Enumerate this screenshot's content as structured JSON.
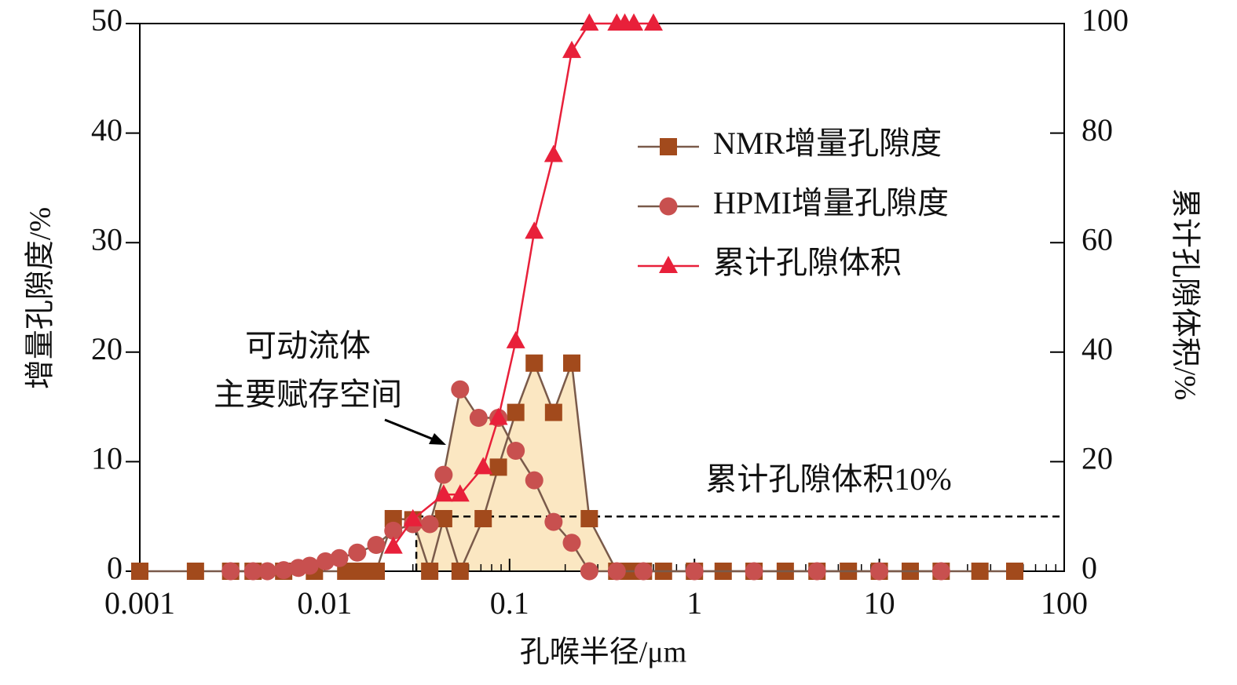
{
  "chart_data": {
    "type": "line",
    "xlabel": "孔喉半径/μm",
    "ylabel": "增量孔隙度/%",
    "y2label": "累计孔隙体积/%",
    "xscale": "log",
    "xlim": [
      0.001,
      100
    ],
    "xticks": [
      0.001,
      0.01,
      0.1,
      1,
      10,
      100
    ],
    "ylim": [
      0,
      50
    ],
    "yticks": [
      0,
      10,
      20,
      30,
      40,
      50
    ],
    "y2lim": [
      0,
      100
    ],
    "y2ticks": [
      0,
      20,
      40,
      60,
      80,
      100
    ],
    "legend_position": "upper right",
    "series": [
      {
        "name": "NMR增量孔隙度",
        "color": "#a24a1c",
        "marker": "square",
        "x": [
          0.001,
          0.002,
          0.0031,
          0.0041,
          0.006,
          0.0088,
          0.013,
          0.016,
          0.019,
          0.0235,
          0.03,
          0.037,
          0.044,
          0.054,
          0.072,
          0.087,
          0.108,
          0.136,
          0.173,
          0.217,
          0.27,
          0.38,
          0.44,
          0.53,
          0.68,
          1,
          1.43,
          2.1,
          3.1,
          4.6,
          6.8,
          10,
          14.7,
          21.6,
          35,
          54
        ],
        "values": [
          0,
          0,
          0,
          0,
          0,
          0,
          0,
          0,
          0,
          4.8,
          4.7,
          0,
          4.8,
          0,
          4.8,
          9.5,
          14.5,
          19,
          14.5,
          19,
          4.8,
          0,
          0,
          0,
          0,
          0,
          0,
          0,
          0,
          0,
          0,
          0,
          0,
          0,
          0,
          0
        ]
      },
      {
        "name": "HPMI增量孔隙度",
        "color": "#c8504f",
        "marker": "circle",
        "x": [
          0.0031,
          0.0041,
          0.0049,
          0.006,
          0.0072,
          0.0083,
          0.0101,
          0.012,
          0.015,
          0.019,
          0.0235,
          0.03,
          0.037,
          0.044,
          0.054,
          0.068,
          0.087,
          0.108,
          0.136,
          0.173,
          0.217,
          0.27,
          0.38,
          0.53,
          1,
          2.1,
          4.6,
          10,
          21.6
        ],
        "values": [
          0,
          0,
          0,
          0.1,
          0.3,
          0.5,
          0.9,
          1.2,
          1.7,
          2.4,
          3.7,
          4.3,
          4.3,
          8.8,
          16.6,
          14,
          14,
          11,
          8.3,
          4.5,
          2.6,
          0,
          0,
          0,
          0,
          0,
          0,
          0,
          0
        ]
      },
      {
        "name": "累计孔隙体积",
        "color": "#e8203a",
        "marker": "triangle",
        "axis": "y2",
        "x": [
          0.0235,
          0.03,
          0.044,
          0.054,
          0.072,
          0.087,
          0.108,
          0.136,
          0.173,
          0.217,
          0.27,
          0.38,
          0.42,
          0.47,
          0.6
        ],
        "values": [
          4.5,
          9.5,
          14,
          14,
          19,
          28,
          42,
          62,
          76,
          95,
          100,
          100,
          100,
          100,
          100
        ]
      }
    ],
    "reference_line": {
      "axis": "y2",
      "value": 10,
      "label": "累计孔隙体积10%"
    },
    "annotation": {
      "lines": [
        "可动流体",
        "主要赋存空间"
      ]
    },
    "shade_color": "#fbe7c2"
  }
}
